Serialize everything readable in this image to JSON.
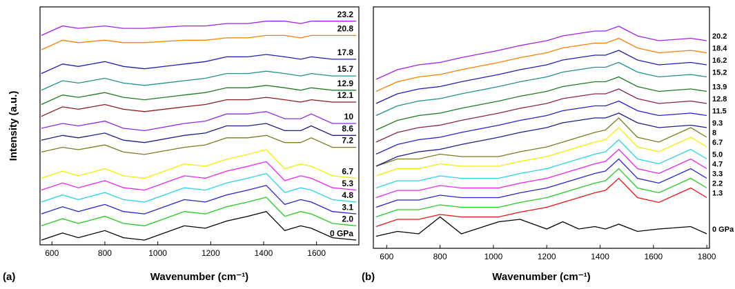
{
  "chart_data": [
    {
      "type": "line",
      "panel": "(a)",
      "ylabel": "Intensity (a.u.)",
      "xlabel": "Wavenumber (cm⁻¹)",
      "xlim": [
        555,
        1760
      ],
      "xticks": [
        600,
        800,
        1000,
        1200,
        1400,
        1600
      ],
      "ylim": [
        0,
        100
      ],
      "x": [
        560,
        640,
        700,
        800,
        870,
        950,
        1100,
        1180,
        1260,
        1340,
        1410,
        1480,
        1540,
        1580,
        1660,
        1750
      ],
      "series": [
        {
          "name": "0 GPa",
          "color": "#000000",
          "values": [
            2,
            5,
            3,
            6,
            3,
            2,
            8,
            7,
            10,
            12,
            14,
            6,
            8,
            7,
            3,
            2
          ]
        },
        {
          "name": "2.0",
          "color": "#22cc22",
          "values": [
            8,
            11,
            9,
            12,
            9,
            8,
            14,
            13,
            16,
            18,
            20,
            12,
            14,
            13,
            9,
            8
          ]
        },
        {
          "name": "3.1",
          "color": "#2323d0",
          "values": [
            13,
            16,
            14,
            17,
            14,
            13,
            19,
            18,
            21,
            23,
            25,
            17,
            19,
            18,
            14,
            13
          ]
        },
        {
          "name": "4.8",
          "color": "#29d4e8",
          "values": [
            18,
            21,
            19,
            22,
            19,
            18,
            24,
            23,
            26,
            28,
            30,
            22,
            24,
            23,
            19,
            18
          ]
        },
        {
          "name": "5.3",
          "color": "#ee22ee",
          "values": [
            23,
            26,
            24,
            27,
            24,
            23,
            29,
            28,
            31,
            33,
            35,
            27,
            29,
            28,
            24,
            23
          ]
        },
        {
          "name": "6.7",
          "color": "#f0f000",
          "values": [
            28,
            31,
            29,
            32,
            29,
            28,
            34,
            33,
            36,
            38,
            40,
            32,
            34,
            33,
            29,
            28
          ]
        },
        {
          "name": "7.2",
          "color": "#7a7a1e",
          "values": [
            39,
            41,
            40,
            42,
            39,
            38,
            41,
            42,
            45,
            45,
            46,
            43,
            43,
            45,
            41,
            41
          ]
        },
        {
          "name": "8.6",
          "color": "#1c1c8c",
          "values": [
            44,
            46,
            45,
            47,
            44,
            43,
            46,
            47,
            50,
            50,
            51,
            48,
            48,
            50,
            46,
            46
          ]
        },
        {
          "name": "10",
          "color": "#8b2be2",
          "values": [
            49,
            51,
            50,
            52,
            49,
            48,
            51,
            52,
            55,
            55,
            56,
            53,
            53,
            55,
            51,
            51
          ]
        },
        {
          "name": "12.1",
          "color": "#8b1a1a",
          "values": [
            54,
            58,
            57,
            59,
            57,
            56,
            58,
            59,
            61,
            61,
            62,
            61,
            60,
            61,
            60,
            60
          ]
        },
        {
          "name": "12.9",
          "color": "#1e7b1e",
          "values": [
            59,
            63,
            62,
            64,
            62,
            61,
            63,
            64,
            66,
            66,
            67,
            66,
            65,
            66,
            65,
            65
          ]
        },
        {
          "name": "15.7",
          "color": "#1f8f8f",
          "values": [
            65,
            69,
            68,
            70,
            68,
            67,
            69,
            70,
            72,
            72,
            73,
            72,
            71,
            72,
            71,
            71
          ]
        },
        {
          "name": "17.8",
          "color": "#1e1eb4",
          "values": [
            72,
            76,
            75,
            77,
            75,
            74,
            76,
            77,
            79,
            79,
            80,
            79,
            78,
            79,
            78,
            78
          ]
        },
        {
          "name": "20.8",
          "color": "#ff8000",
          "values": [
            82,
            86,
            85,
            86,
            85,
            85,
            86,
            86,
            87,
            87,
            88,
            88,
            87,
            88,
            88,
            88
          ]
        },
        {
          "name": "23.2",
          "color": "#a020f0",
          "values": [
            88,
            92,
            91,
            92,
            91,
            91,
            92,
            92,
            93,
            93,
            94,
            94,
            93,
            94,
            94,
            94
          ]
        }
      ]
    },
    {
      "type": "line",
      "panel": "(b)",
      "xlabel": "Wavenumber (cm⁻¹)",
      "xlim": [
        550,
        1810
      ],
      "xticks": [
        600,
        800,
        1000,
        1200,
        1400,
        1600,
        1800
      ],
      "ylim": [
        0,
        100
      ],
      "x": [
        560,
        640,
        720,
        800,
        880,
        1020,
        1100,
        1200,
        1260,
        1320,
        1380,
        1420,
        1470,
        1540,
        1620,
        1740,
        1800
      ],
      "series": [
        {
          "name": "0 GPa",
          "color": "#000000",
          "values": [
            5,
            7,
            6,
            13,
            6,
            11,
            12,
            8,
            11,
            8,
            9,
            8,
            10,
            7,
            8,
            9,
            6
          ]
        },
        {
          "name": "1.3",
          "color": "#ee1111",
          "values": [
            9,
            12,
            12,
            14,
            13,
            13,
            15,
            17,
            19,
            21,
            23,
            24,
            29,
            21,
            19,
            25,
            21
          ]
        },
        {
          "name": "2.2",
          "color": "#22cc22",
          "values": [
            13,
            16,
            16,
            18,
            17,
            17,
            19,
            21,
            23,
            25,
            27,
            28,
            33,
            25,
            23,
            29,
            25
          ]
        },
        {
          "name": "3.3",
          "color": "#2323d0",
          "values": [
            17,
            20,
            20,
            22,
            21,
            21,
            23,
            25,
            27,
            29,
            31,
            32,
            37,
            29,
            27,
            33,
            29
          ]
        },
        {
          "name": "4.7",
          "color": "#ee22ee",
          "values": [
            21,
            24,
            24,
            26,
            25,
            25,
            27,
            29,
            31,
            33,
            35,
            36,
            41,
            33,
            31,
            37,
            33
          ]
        },
        {
          "name": "5.0",
          "color": "#29d4e8",
          "values": [
            25,
            28,
            28,
            30,
            29,
            29,
            31,
            33,
            35,
            37,
            39,
            40,
            45,
            37,
            35,
            41,
            37
          ]
        },
        {
          "name": "6.7",
          "color": "#f0f000",
          "values": [
            30,
            33,
            33,
            35,
            34,
            34,
            36,
            38,
            40,
            42,
            44,
            45,
            50,
            42,
            40,
            46,
            42
          ]
        },
        {
          "name": "8",
          "color": "#7a7a1e",
          "values": [
            34,
            37,
            37,
            39,
            38,
            38,
            40,
            42,
            44,
            46,
            48,
            49,
            54,
            46,
            44,
            50,
            46
          ]
        },
        {
          "name": "9.3",
          "color": "#1c1c8c",
          "values": [
            34,
            38,
            40,
            41,
            43,
            46,
            48,
            50,
            52,
            53,
            54,
            54,
            56,
            52,
            50,
            51,
            50
          ]
        },
        {
          "name": "11.5",
          "color": "#2323d0",
          "values": [
            39,
            43,
            45,
            46,
            48,
            51,
            53,
            55,
            57,
            58,
            59,
            59,
            61,
            57,
            55,
            56,
            55
          ]
        },
        {
          "name": "12.8",
          "color": "#8b2252",
          "values": [
            44,
            48,
            50,
            51,
            53,
            56,
            58,
            60,
            62,
            63,
            64,
            64,
            66,
            62,
            60,
            61,
            60
          ]
        },
        {
          "name": "13.9",
          "color": "#1e7b1e",
          "values": [
            49,
            53,
            55,
            56,
            58,
            61,
            63,
            65,
            67,
            68,
            69,
            69,
            71,
            67,
            65,
            66,
            65
          ]
        },
        {
          "name": "15.2",
          "color": "#1f8f8f",
          "values": [
            55,
            59,
            61,
            62,
            64,
            67,
            69,
            71,
            73,
            74,
            75,
            75,
            77,
            73,
            71,
            72,
            71
          ]
        },
        {
          "name": "16.2",
          "color": "#1e1eb4",
          "values": [
            60,
            64,
            66,
            67,
            69,
            72,
            74,
            76,
            78,
            79,
            80,
            80,
            82,
            78,
            76,
            77,
            76
          ]
        },
        {
          "name": "18.4",
          "color": "#ff8000",
          "values": [
            65,
            69,
            71,
            72,
            74,
            77,
            79,
            81,
            83,
            84,
            85,
            85,
            87,
            83,
            81,
            82,
            81
          ]
        },
        {
          "name": "20.2",
          "color": "#a020f0",
          "values": [
            70,
            74,
            76,
            77,
            79,
            82,
            84,
            86,
            88,
            89,
            90,
            90,
            92,
            88,
            86,
            87,
            86
          ]
        }
      ]
    }
  ]
}
